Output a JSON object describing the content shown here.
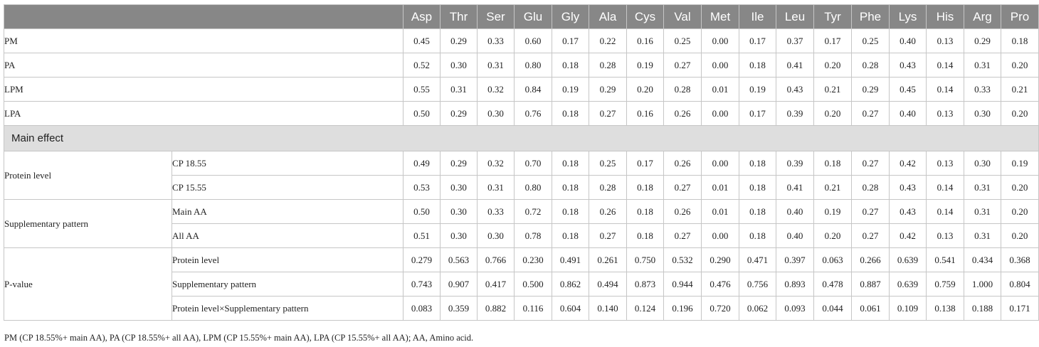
{
  "columns": [
    "Asp",
    "Thr",
    "Ser",
    "Glu",
    "Gly",
    "Ala",
    "Cys",
    "Val",
    "Met",
    "Ile",
    "Leu",
    "Tyr",
    "Phe",
    "Lys",
    "His",
    "Arg",
    "Pro"
  ],
  "treatments": [
    {
      "label": "PM",
      "values": [
        "0.45",
        "0.29",
        "0.33",
        "0.60",
        "0.17",
        "0.22",
        "0.16",
        "0.25",
        "0.00",
        "0.17",
        "0.37",
        "0.17",
        "0.25",
        "0.40",
        "0.13",
        "0.29",
        "0.18"
      ]
    },
    {
      "label": "PA",
      "values": [
        "0.52",
        "0.30",
        "0.31",
        "0.80",
        "0.18",
        "0.28",
        "0.19",
        "0.27",
        "0.00",
        "0.18",
        "0.41",
        "0.20",
        "0.28",
        "0.43",
        "0.14",
        "0.31",
        "0.20"
      ]
    },
    {
      "label": "LPM",
      "values": [
        "0.55",
        "0.31",
        "0.32",
        "0.84",
        "0.19",
        "0.29",
        "0.20",
        "0.28",
        "0.01",
        "0.19",
        "0.43",
        "0.21",
        "0.29",
        "0.45",
        "0.14",
        "0.33",
        "0.21"
      ]
    },
    {
      "label": "LPA",
      "values": [
        "0.50",
        "0.29",
        "0.30",
        "0.76",
        "0.18",
        "0.27",
        "0.16",
        "0.26",
        "0.00",
        "0.17",
        "0.39",
        "0.20",
        "0.27",
        "0.40",
        "0.13",
        "0.30",
        "0.20"
      ]
    }
  ],
  "section_title": "Main effect",
  "groups": [
    {
      "label": "Protein level",
      "rows": [
        {
          "label": "CP 18.55",
          "values": [
            "0.49",
            "0.29",
            "0.32",
            "0.70",
            "0.18",
            "0.25",
            "0.17",
            "0.26",
            "0.00",
            "0.18",
            "0.39",
            "0.18",
            "0.27",
            "0.42",
            "0.13",
            "0.30",
            "0.19"
          ]
        },
        {
          "label": "CP 15.55",
          "values": [
            "0.53",
            "0.30",
            "0.31",
            "0.80",
            "0.18",
            "0.28",
            "0.18",
            "0.27",
            "0.01",
            "0.18",
            "0.41",
            "0.21",
            "0.28",
            "0.43",
            "0.14",
            "0.31",
            "0.20"
          ]
        }
      ]
    },
    {
      "label": "Supplementary pattern",
      "rows": [
        {
          "label": "Main AA",
          "values": [
            "0.50",
            "0.30",
            "0.33",
            "0.72",
            "0.18",
            "0.26",
            "0.18",
            "0.26",
            "0.01",
            "0.18",
            "0.40",
            "0.19",
            "0.27",
            "0.43",
            "0.14",
            "0.31",
            "0.20"
          ]
        },
        {
          "label": "All AA",
          "values": [
            "0.51",
            "0.30",
            "0.30",
            "0.78",
            "0.18",
            "0.27",
            "0.18",
            "0.27",
            "0.00",
            "0.18",
            "0.40",
            "0.20",
            "0.27",
            "0.42",
            "0.13",
            "0.31",
            "0.20"
          ]
        }
      ]
    },
    {
      "label": "P-value",
      "rows": [
        {
          "label": "Protein level",
          "values": [
            "0.279",
            "0.563",
            "0.766",
            "0.230",
            "0.491",
            "0.261",
            "0.750",
            "0.532",
            "0.290",
            "0.471",
            "0.397",
            "0.063",
            "0.266",
            "0.639",
            "0.541",
            "0.434",
            "0.368"
          ]
        },
        {
          "label": "Supplementary pattern",
          "values": [
            "0.743",
            "0.907",
            "0.417",
            "0.500",
            "0.862",
            "0.494",
            "0.873",
            "0.944",
            "0.476",
            "0.756",
            "0.893",
            "0.478",
            "0.887",
            "0.639",
            "0.759",
            "1.000",
            "0.804"
          ]
        },
        {
          "label": "Protein level×Supplementary pattern",
          "values": [
            "0.083",
            "0.359",
            "0.882",
            "0.116",
            "0.604",
            "0.140",
            "0.124",
            "0.196",
            "0.720",
            "0.062",
            "0.093",
            "0.044",
            "0.061",
            "0.109",
            "0.138",
            "0.188",
            "0.171"
          ]
        }
      ]
    }
  ],
  "footnote": "PM (CP 18.55%+ main AA), PA (CP 18.55%+ all AA), LPM (CP 15.55%+ main AA), LPA (CP 15.55%+ all AA); AA, Amino acid.",
  "colors": {
    "header_bg": "#878787",
    "section_bg": "#dedede",
    "border": "#c6c6c6"
  }
}
